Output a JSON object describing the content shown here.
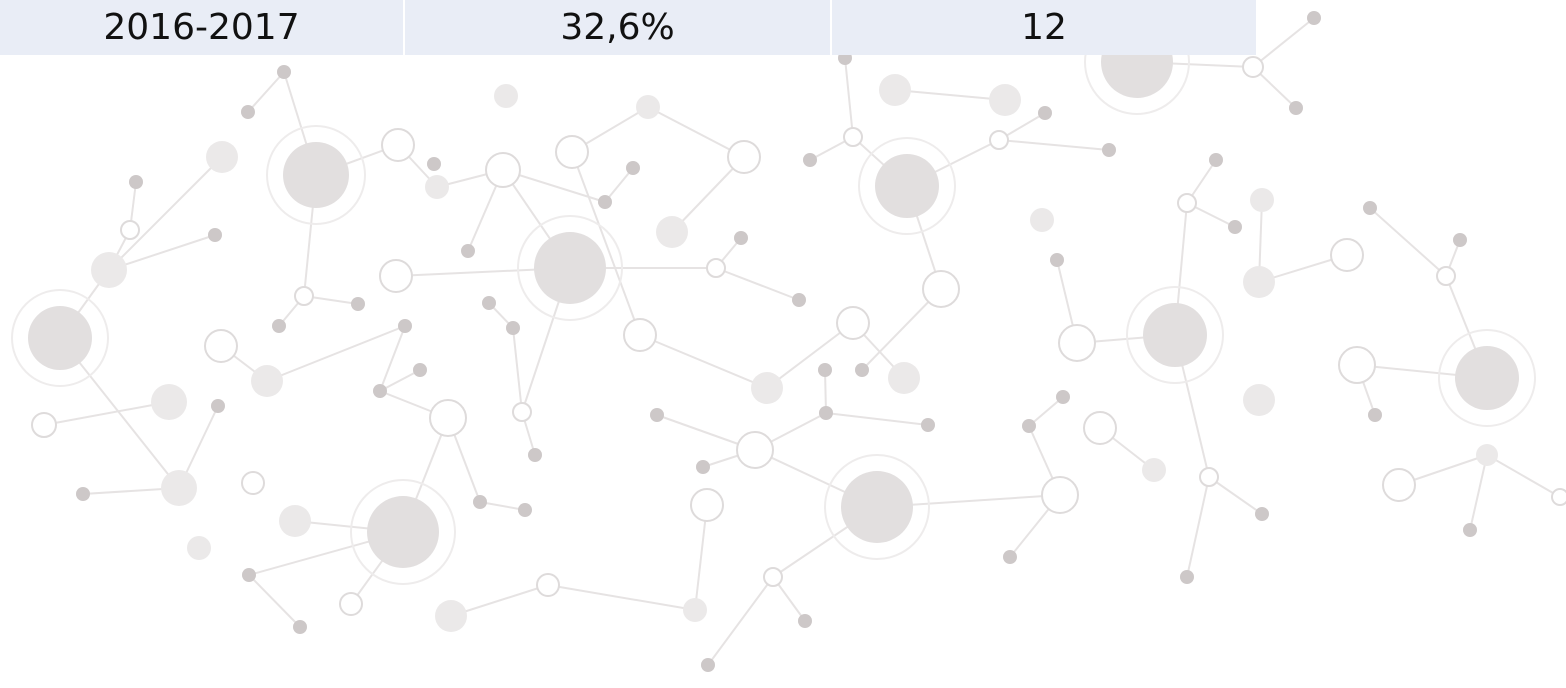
{
  "table": {
    "rows": [
      [
        "2016-2017",
        "32,6%",
        "12"
      ]
    ]
  }
}
